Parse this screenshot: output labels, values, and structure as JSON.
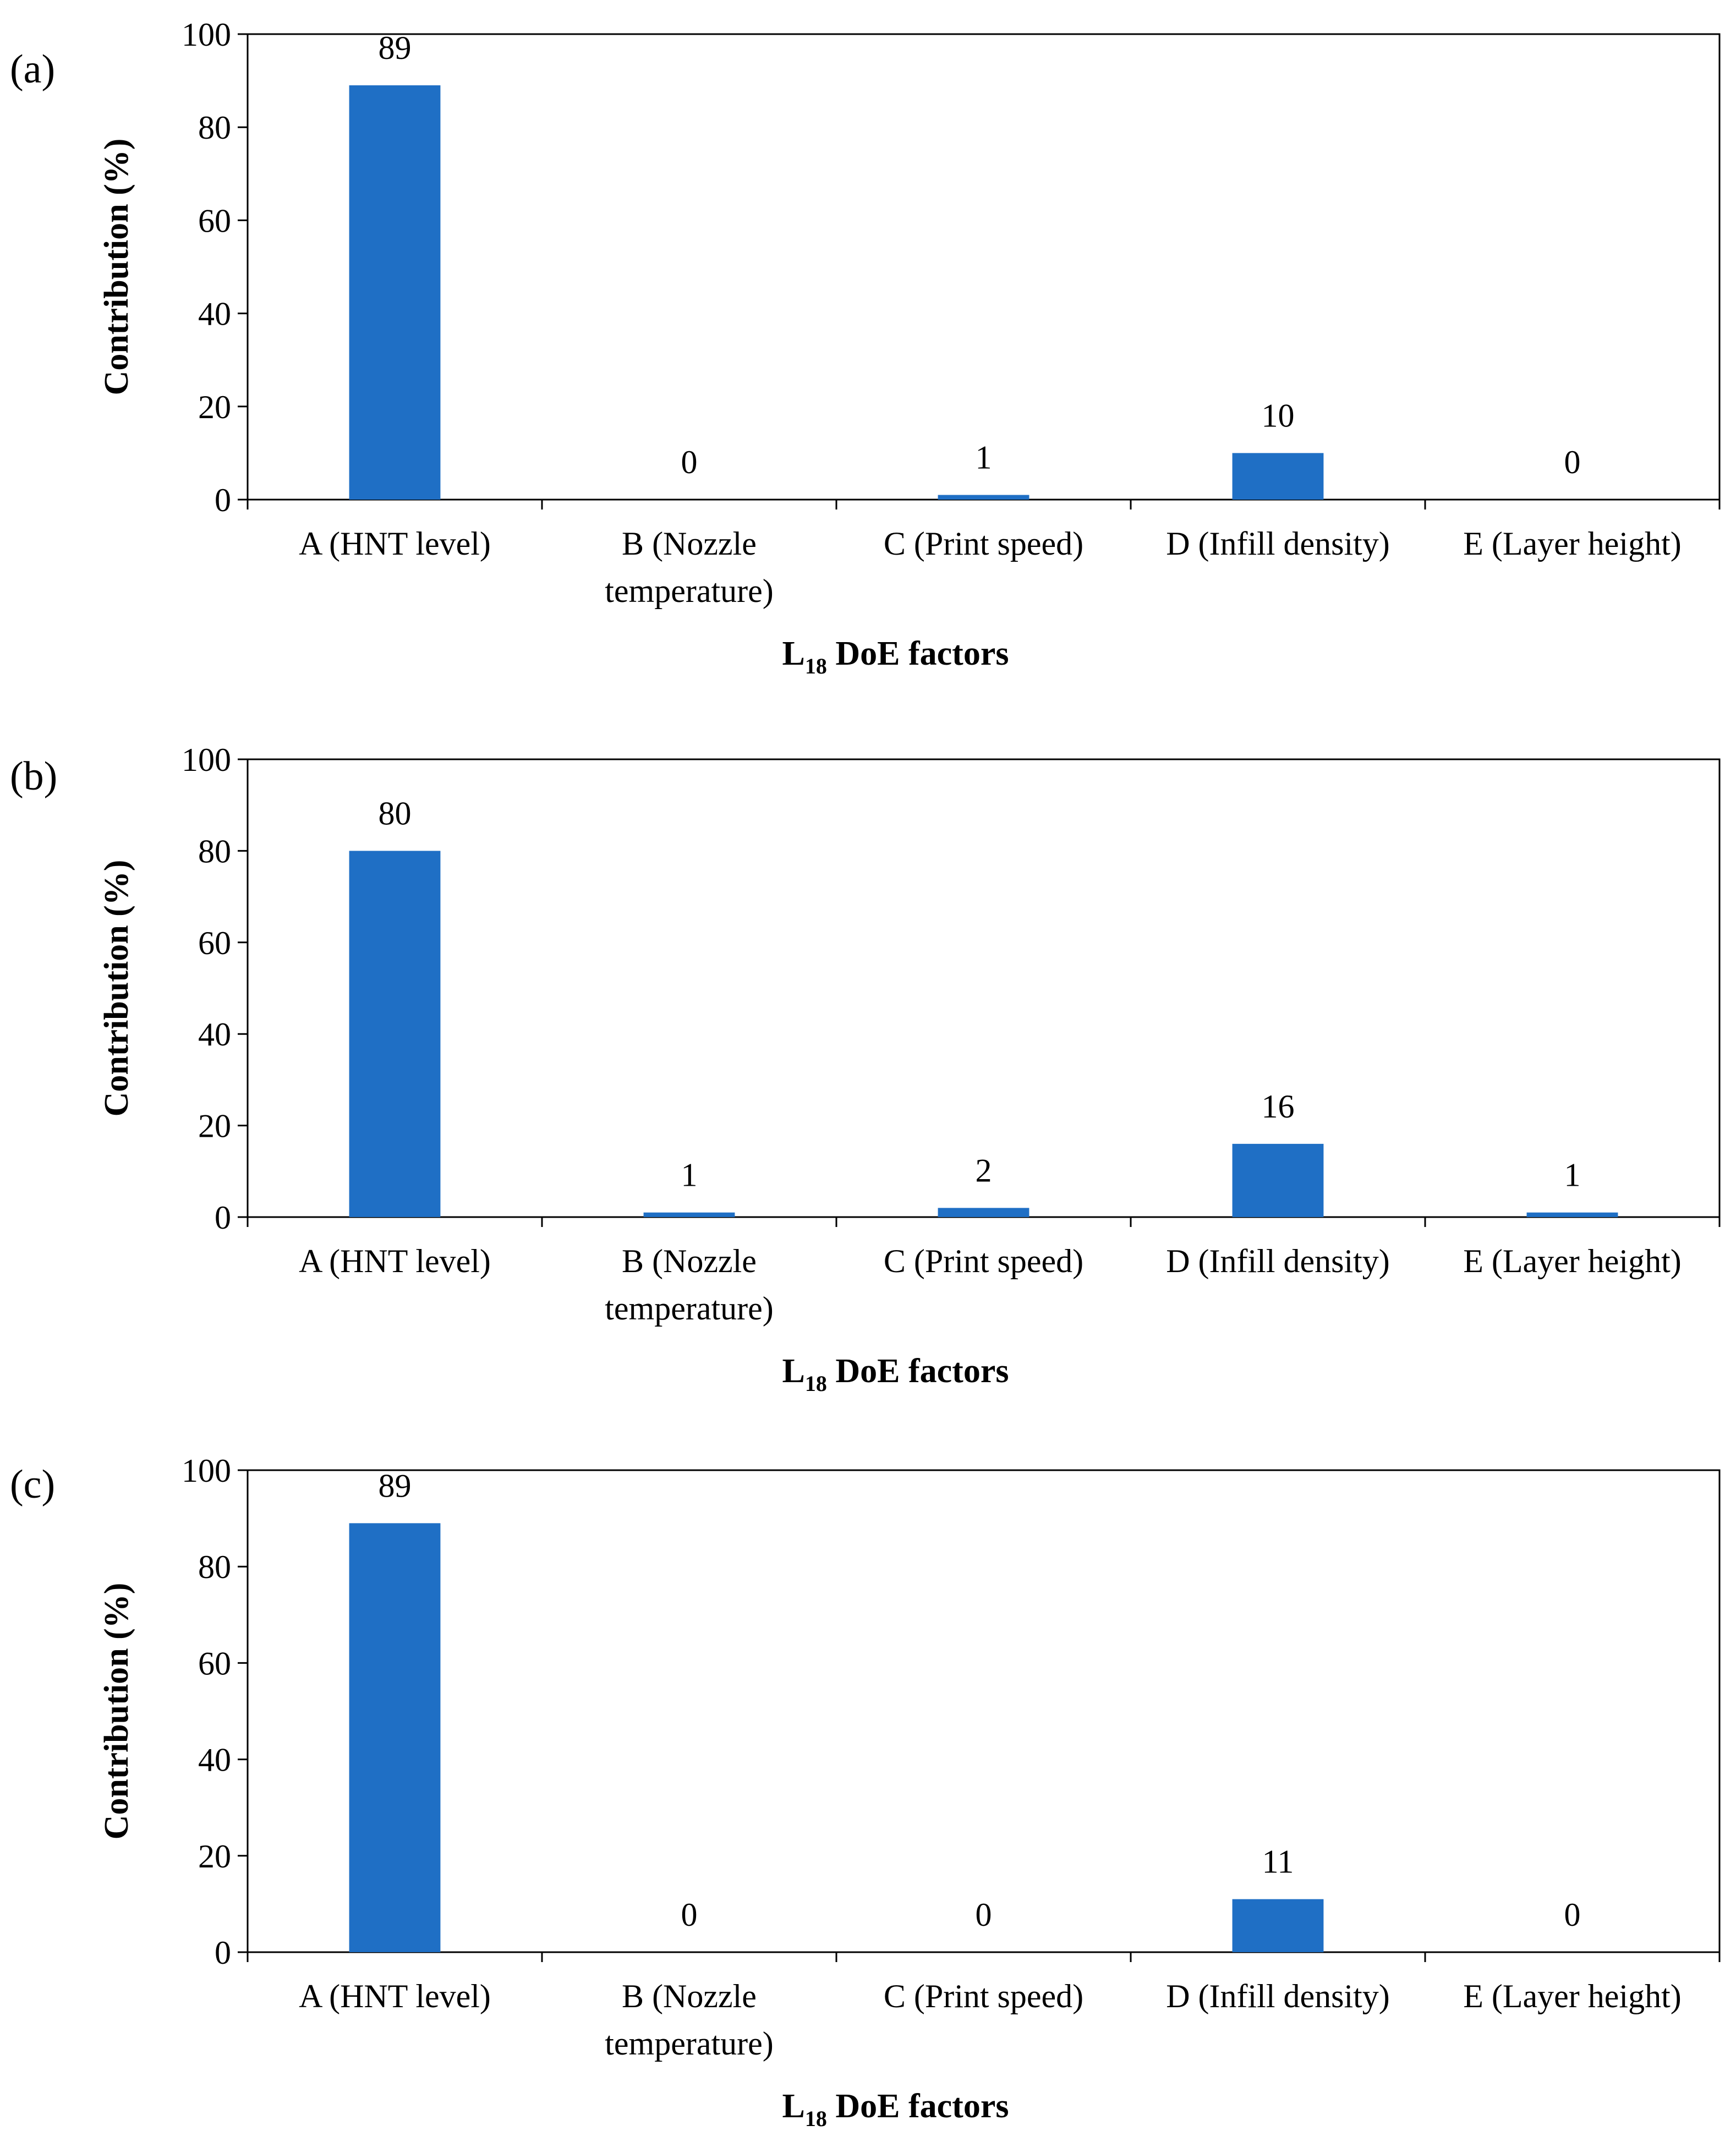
{
  "figure": {
    "bar_color": "#1f6fc5"
  },
  "chart_data": [
    {
      "type": "bar",
      "panel": "(a)",
      "categories": [
        [
          "A (HNT level)"
        ],
        [
          "B (Nozzle",
          "temperature)"
        ],
        [
          "C (Print speed)"
        ],
        [
          "D (Infill density)"
        ],
        [
          "E (Layer height)"
        ]
      ],
      "values": [
        89,
        0,
        1,
        10,
        0
      ],
      "data_labels": [
        "89",
        "0",
        "1",
        "10",
        "0"
      ],
      "xlabel": {
        "main": "L",
        "sub": "18",
        "rest": " DoE factors"
      },
      "ylabel": "Contribution (%)",
      "ylim": [
        0,
        100
      ],
      "yticks": [
        0,
        20,
        40,
        60,
        80,
        100
      ],
      "grid": false,
      "legend": "none"
    },
    {
      "type": "bar",
      "panel": "(b)",
      "categories": [
        [
          "A (HNT level)"
        ],
        [
          "B (Nozzle",
          "temperature)"
        ],
        [
          "C (Print speed)"
        ],
        [
          "D (Infill density)"
        ],
        [
          "E (Layer height)"
        ]
      ],
      "values": [
        80,
        1,
        2,
        16,
        1
      ],
      "data_labels": [
        "80",
        "1",
        "2",
        "16",
        "1"
      ],
      "xlabel": {
        "main": "L",
        "sub": "18",
        "rest": " DoE factors"
      },
      "ylabel": "Contribution (%)",
      "ylim": [
        0,
        100
      ],
      "yticks": [
        0,
        20,
        40,
        60,
        80,
        100
      ],
      "grid": false,
      "legend": "none"
    },
    {
      "type": "bar",
      "panel": "(c)",
      "categories": [
        [
          "A (HNT level)"
        ],
        [
          "B (Nozzle",
          "temperature)"
        ],
        [
          "C (Print speed)"
        ],
        [
          "D (Infill density)"
        ],
        [
          "E (Layer height)"
        ]
      ],
      "values": [
        89,
        0,
        0,
        11,
        0
      ],
      "data_labels": [
        "89",
        "0",
        "0",
        "11",
        "0"
      ],
      "xlabel": {
        "main": "L",
        "sub": "18",
        "rest": " DoE factors"
      },
      "ylabel": "Contribution (%)",
      "ylim": [
        0,
        100
      ],
      "yticks": [
        0,
        20,
        40,
        60,
        80,
        100
      ],
      "grid": false,
      "legend": "none"
    }
  ]
}
